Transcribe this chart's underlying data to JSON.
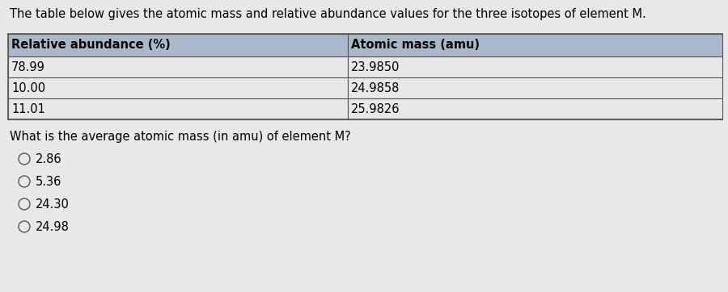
{
  "title_text": "The table below gives the atomic mass and relative abundance values for the three isotopes of element M.",
  "col1_header": "Relative abundance (%)",
  "col2_header": "Atomic mass (amu)",
  "col1_values": [
    "78.99",
    "10.00",
    "11.01"
  ],
  "col2_values": [
    "23.9850",
    "24.9858",
    "25.9826"
  ],
  "question": "What is the average atomic mass (in amu) of element M?",
  "choices": [
    "2.86",
    "5.36",
    "24.30",
    "24.98"
  ],
  "bg_color": "#e8e8e8",
  "header_row_color": "#aab8cc",
  "table_border_color": "#555555",
  "cell_bg_color": "#e8e8e8",
  "title_fontsize": 10.5,
  "question_fontsize": 10.5,
  "choice_fontsize": 10.5,
  "table_fontsize": 10.5
}
